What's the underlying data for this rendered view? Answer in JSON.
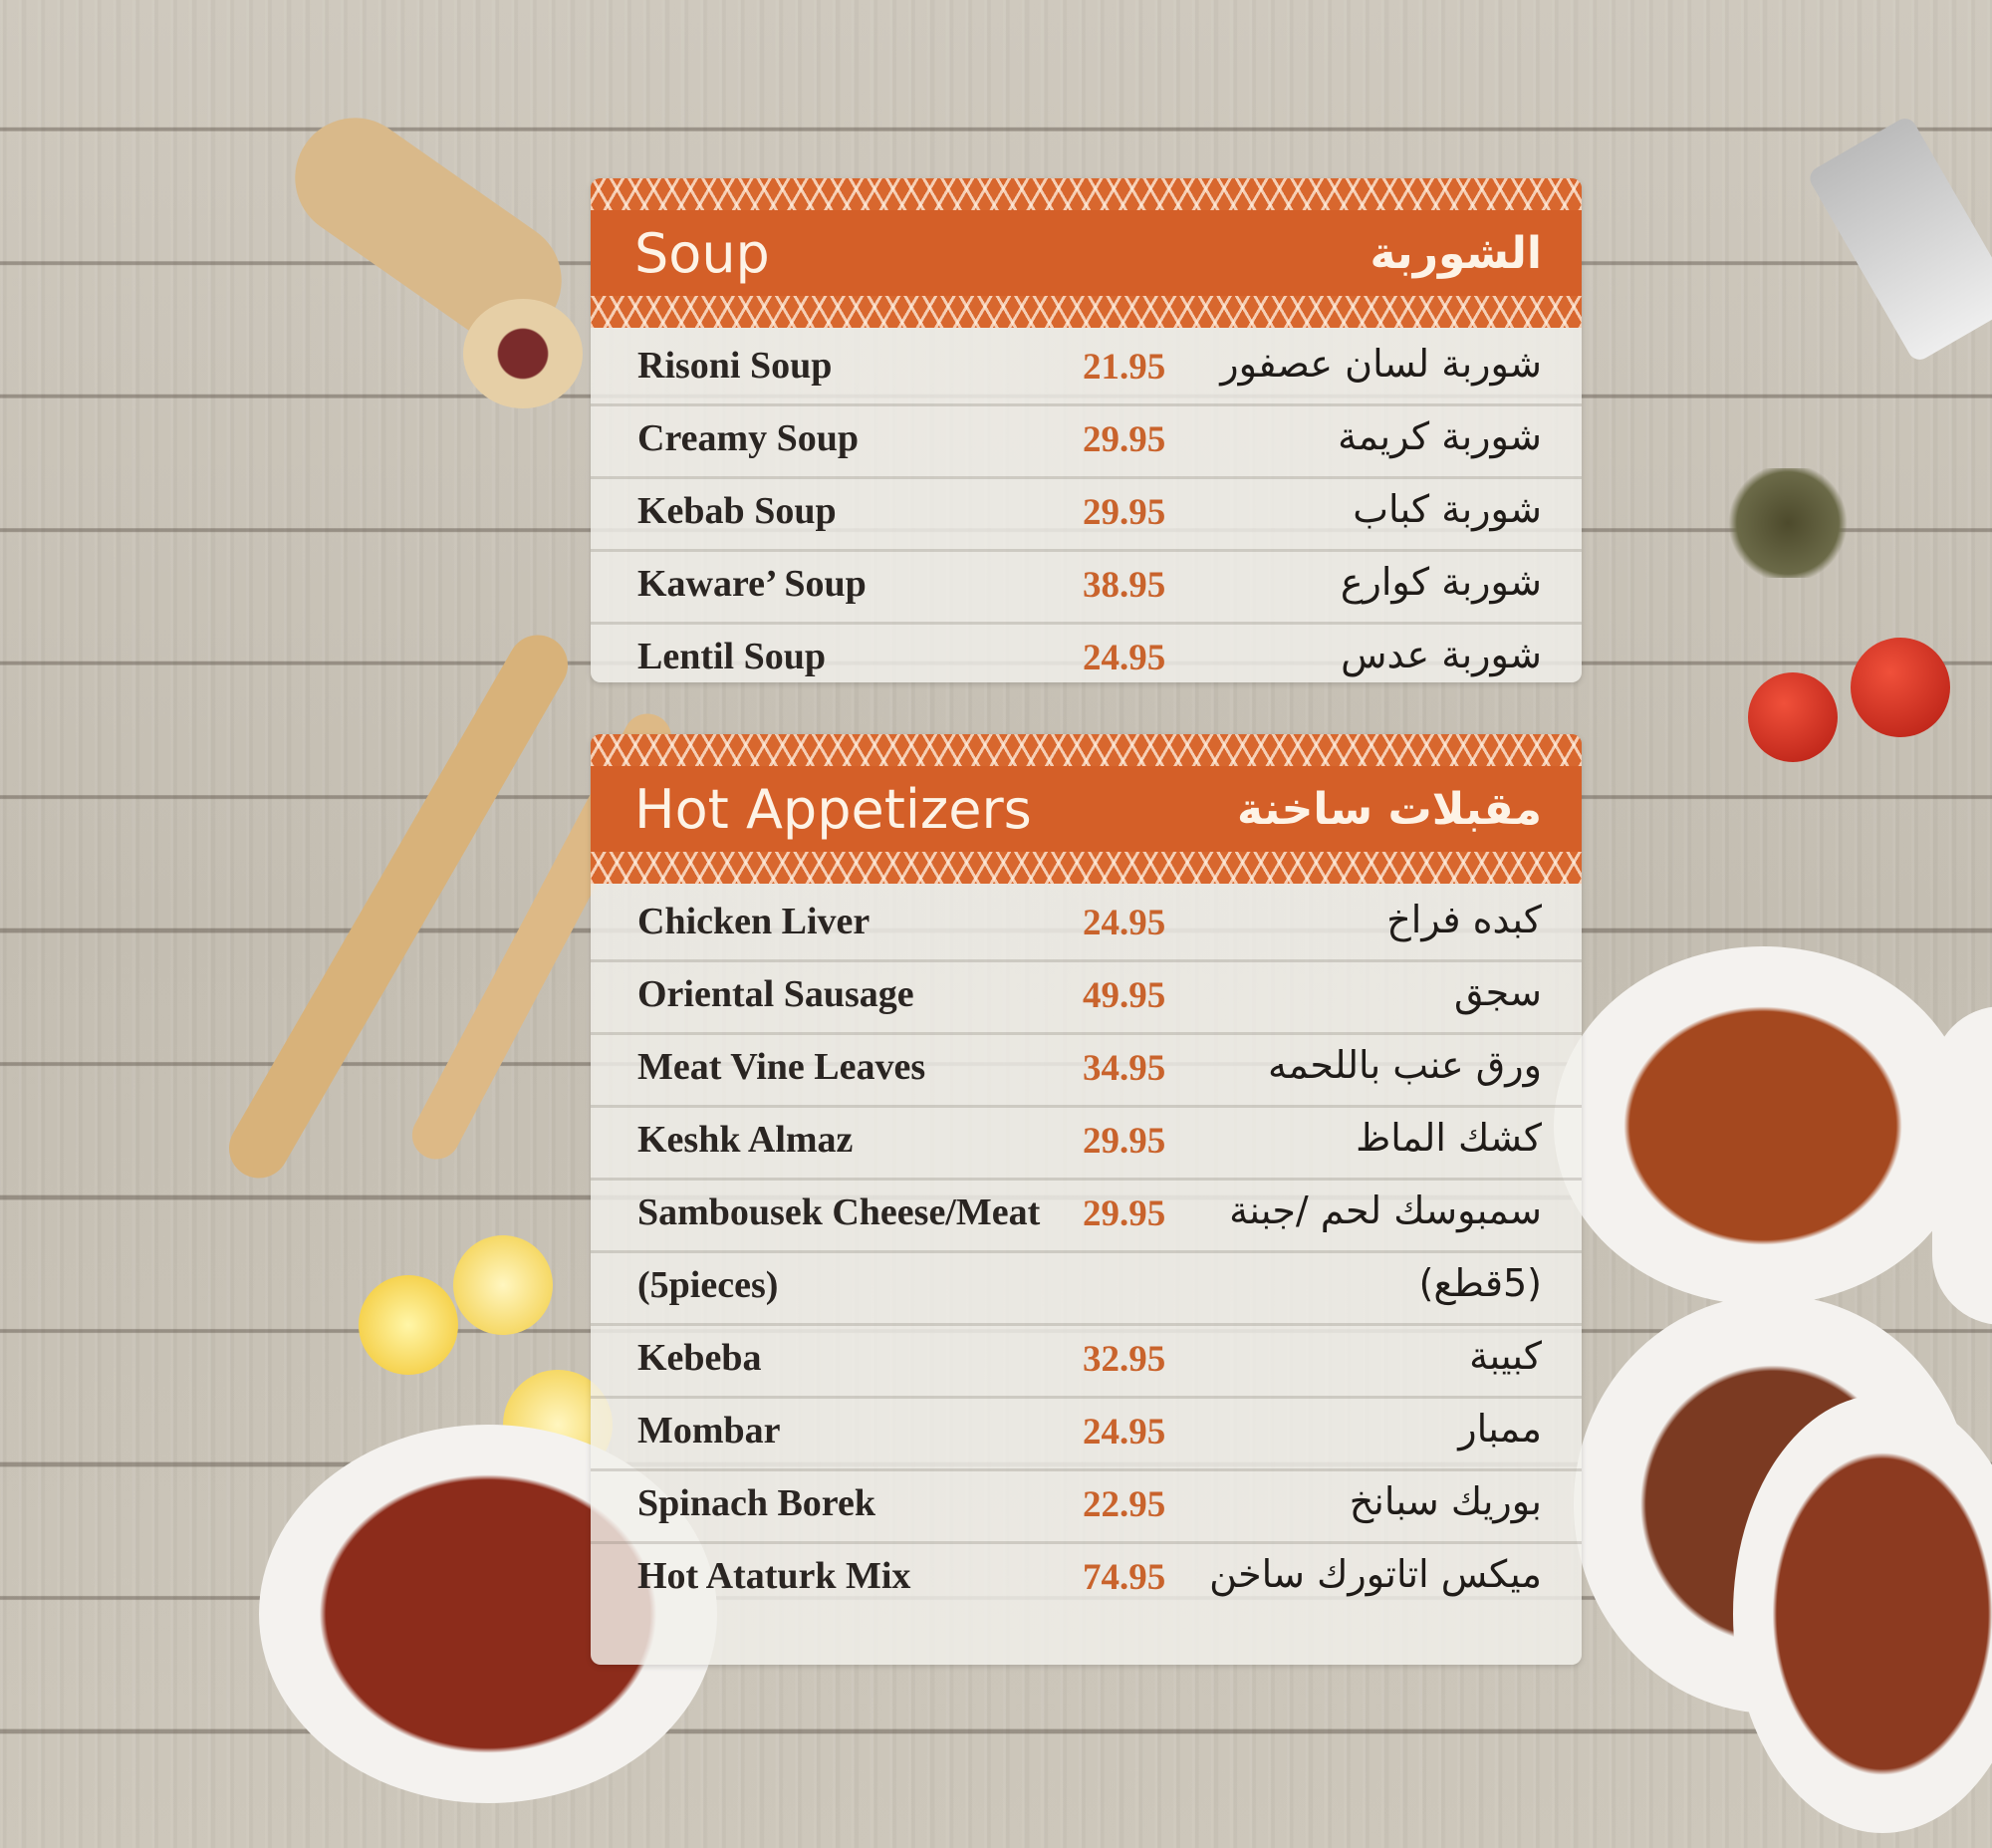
{
  "colors": {
    "header": "#d45f28",
    "price": "#c9632c",
    "text": "#2a2522"
  },
  "sections": [
    {
      "title_en": "Soup",
      "title_ar": "الشوربة",
      "items": [
        {
          "name": "Risoni Soup",
          "price": "21.95",
          "name_ar": "شوربة لسان عصفور"
        },
        {
          "name": "Creamy Soup",
          "price": "29.95",
          "name_ar": "شوربة كريمة"
        },
        {
          "name": "Kebab Soup",
          "price": "29.95",
          "name_ar": "شوربة كباب"
        },
        {
          "name": "Kaware’ Soup",
          "price": "38.95",
          "name_ar": "شوربة كوارع"
        },
        {
          "name": "Lentil Soup",
          "price": "24.95",
          "name_ar": "شوربة عدس"
        }
      ]
    },
    {
      "title_en": "Hot Appetizers",
      "title_ar": "مقبلات ساخنة",
      "items": [
        {
          "name": "Chicken Liver",
          "price": "24.95",
          "name_ar": "كبده فراخ"
        },
        {
          "name": "Oriental Sausage",
          "price": "49.95",
          "name_ar": "سجق"
        },
        {
          "name": "Meat Vine Leaves",
          "price": "34.95",
          "name_ar": "ورق عنب باللحمه"
        },
        {
          "name": "Keshk Almaz",
          "price": "29.95",
          "name_ar": "كشك الماظ"
        },
        {
          "name": "Sambousek Cheese/Meat",
          "price": "29.95",
          "name_ar": "سمبوسك لحم /جبنة"
        },
        {
          "name": "(5pieces)",
          "price": "",
          "name_ar": "(5قطع)"
        },
        {
          "name": "Kebeba",
          "price": "32.95",
          "name_ar": "كبيبة"
        },
        {
          "name": "Mombar",
          "price": "24.95",
          "name_ar": "ممبار"
        },
        {
          "name": "Spinach Borek",
          "price": "22.95",
          "name_ar": "بوريك سبانخ"
        },
        {
          "name": "Hot Ataturk Mix",
          "price": "74.95",
          "name_ar": "ميكس اتاتورك ساخن"
        }
      ]
    }
  ]
}
